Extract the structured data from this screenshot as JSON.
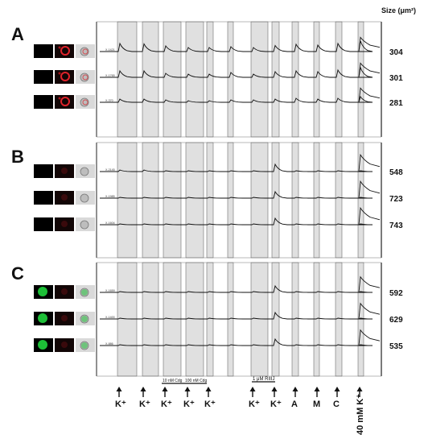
{
  "header": {
    "size_label": "Size (μm²)"
  },
  "panels": [
    {
      "letter": "A",
      "thumb_style": "red",
      "cells": [
        {
          "id": "X-1421",
          "size": "304",
          "amp": [
            1,
            0.95,
            0.7,
            0.5,
            0.5,
            0.6,
            0.5,
            0.75,
            0.9,
            0.8,
            1.0,
            1.3,
            1.1
          ]
        },
        {
          "id": "X-1765",
          "size": "301",
          "amp": [
            0.8,
            0.8,
            0.5,
            0.4,
            0.4,
            0.6,
            0.4,
            0.7,
            0.8,
            0.7,
            0.9,
            1.2,
            1.1
          ]
        },
        {
          "id": "X-370",
          "size": "281",
          "amp": [
            0.4,
            0.4,
            0.3,
            0.2,
            0.2,
            0.3,
            0.3,
            0.4,
            0.5,
            0.4,
            0.5,
            0.7,
            1.1
          ]
        }
      ]
    },
    {
      "letter": "B",
      "thumb_style": "gray",
      "cells": [
        {
          "id": "X-2145",
          "size": "548",
          "amp": [
            0.2,
            0.2,
            0.1,
            0.1,
            0.1,
            0.1,
            0.1,
            0.9,
            0.1,
            0.1,
            0.1,
            0.1,
            1.3
          ]
        },
        {
          "id": "X-1985",
          "size": "723",
          "amp": [
            0.1,
            0.1,
            0.1,
            0.1,
            0.1,
            0.1,
            0.1,
            0.8,
            0.1,
            0.1,
            0.1,
            0.1,
            1.3
          ]
        },
        {
          "id": "X-1604",
          "size": "743",
          "amp": [
            0.1,
            0.1,
            0.1,
            0.1,
            0.1,
            0.1,
            0.1,
            0.8,
            0.1,
            0.1,
            0.1,
            0.1,
            1.3
          ]
        }
      ]
    },
    {
      "letter": "C",
      "thumb_style": "green",
      "cells": [
        {
          "id": "X-1659",
          "size": "592",
          "amp": [
            0.1,
            0.1,
            0.1,
            0.1,
            0.1,
            0.1,
            0.1,
            0.8,
            0.1,
            0.1,
            0.1,
            0.1,
            1.2
          ]
        },
        {
          "id": "X-1400",
          "size": "629",
          "amp": [
            0.1,
            0.1,
            0.1,
            0.1,
            0.1,
            0.1,
            0.1,
            0.8,
            0.1,
            0.1,
            0.1,
            0.1,
            1.2
          ]
        },
        {
          "id": "X-886",
          "size": "535",
          "amp": [
            0.1,
            0.1,
            0.1,
            0.1,
            0.1,
            0.1,
            0.1,
            0.8,
            0.1,
            0.1,
            0.1,
            0.1,
            1.2
          ]
        }
      ]
    }
  ],
  "stimuli": [
    {
      "label": "K⁺"
    },
    {
      "label": "K⁺"
    },
    {
      "label": "K⁺"
    },
    {
      "label": "K⁺"
    },
    {
      "label": "K⁺"
    },
    {
      "label": "K⁺"
    },
    {
      "label": "K⁺"
    },
    {
      "label": "A"
    },
    {
      "label": "M"
    },
    {
      "label": "C"
    },
    {
      "label": "40 mM K⁺"
    }
  ],
  "drug_bars": [
    {
      "label": "10 nM Cdg"
    },
    {
      "label": "100 nM Cdg"
    },
    {
      "label": "1 μM RIIIJ"
    }
  ],
  "colors": {
    "trace": "#111111",
    "shade": "#e0e0e0",
    "shade_border": "#555555",
    "red_cell": "#e0222a",
    "green_cell": "#1fc93a"
  }
}
